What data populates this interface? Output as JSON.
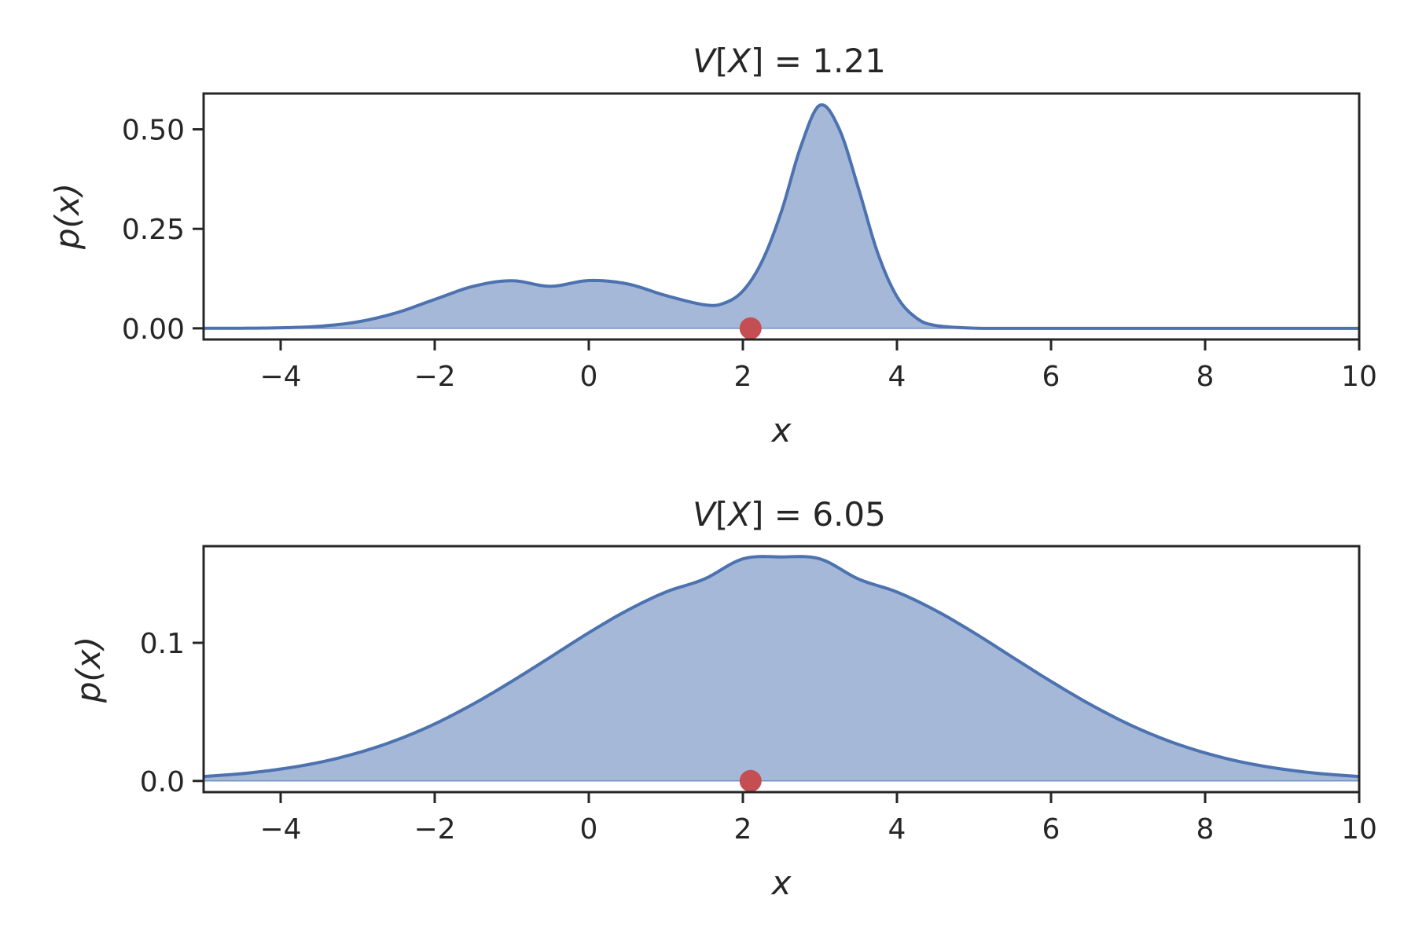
{
  "colors": {
    "line": "#4c72b0",
    "fill": "#4c72b0",
    "marker": "#c44e52",
    "axes": "#262626",
    "background": "#ffffff"
  },
  "chart_data": [
    {
      "type": "area",
      "title": "V[X] = 1.21",
      "title_parts": {
        "var": "V",
        "open": "[",
        "rv": "X",
        "close": "]",
        "rest": " = 1.21"
      },
      "xlabel": "x",
      "ylabel": "p(x)",
      "xlim": [
        -5,
        10
      ],
      "ylim": [
        -0.028,
        0.59
      ],
      "xticks": [
        -4,
        -2,
        0,
        2,
        4,
        6,
        8,
        10
      ],
      "xtick_labels": [
        "−4",
        "−2",
        "0",
        "2",
        "4",
        "6",
        "8",
        "10"
      ],
      "yticks": [
        0.0,
        0.25,
        0.5
      ],
      "ytick_labels": [
        "0.00",
        "0.25",
        "0.50"
      ],
      "grid": false,
      "series": [
        {
          "x": [
            -5,
            -4.5,
            -4,
            -3.5,
            -3,
            -2.5,
            -2,
            -1.5,
            -1,
            -0.5,
            0,
            0.5,
            1,
            1.5,
            1.75,
            2,
            2.25,
            2.5,
            2.75,
            3,
            3.25,
            3.5,
            3.75,
            4,
            4.25,
            4.5,
            5,
            5.5,
            6,
            7,
            8,
            9,
            10
          ],
          "y": [
            0.0,
            0.0002,
            0.0013,
            0.0052,
            0.0162,
            0.0389,
            0.0726,
            0.1056,
            0.1197,
            0.1056,
            0.1201,
            0.1117,
            0.0824,
            0.0592,
            0.0628,
            0.0939,
            0.1688,
            0.2934,
            0.4556,
            0.5609,
            0.5013,
            0.3518,
            0.1893,
            0.0797,
            0.0264,
            0.0072,
            0.0005,
            0.0,
            0.0,
            0.0,
            0.0,
            0.0,
            0.0
          ]
        }
      ],
      "point": {
        "x": 2.1,
        "y": 0.0
      }
    },
    {
      "type": "area",
      "title": "V[X] = 6.05",
      "title_parts": {
        "var": "V",
        "open": "[",
        "rv": "X",
        "close": "]",
        "rest": " = 6.05"
      },
      "xlabel": "x",
      "ylabel": "p(x)",
      "xlim": [
        -5,
        10
      ],
      "ylim": [
        -0.0081,
        0.17
      ],
      "xticks": [
        -4,
        -2,
        0,
        2,
        4,
        6,
        8,
        10
      ],
      "xtick_labels": [
        "−4",
        "−2",
        "0",
        "2",
        "4",
        "6",
        "8",
        "10"
      ],
      "yticks": [
        0.0,
        0.1
      ],
      "ytick_labels": [
        "0.0",
        "0.1"
      ],
      "grid": false,
      "series": [
        {
          "x": [
            -5,
            -4.5,
            -4,
            -3.5,
            -3,
            -2.5,
            -2,
            -1.5,
            -1,
            -0.5,
            0,
            0.5,
            1,
            1.5,
            2,
            2.5,
            3,
            3.5,
            4,
            4.5,
            5,
            5.5,
            6,
            6.5,
            7,
            7.5,
            8,
            8.5,
            9,
            9.5,
            10
          ],
          "y": [
            0.0032,
            0.0053,
            0.0086,
            0.0134,
            0.0203,
            0.0295,
            0.0413,
            0.0557,
            0.0721,
            0.0896,
            0.1073,
            0.1235,
            0.1368,
            0.1462,
            0.1608,
            0.1622,
            0.1608,
            0.1462,
            0.1368,
            0.1235,
            0.1073,
            0.0896,
            0.0721,
            0.0557,
            0.0413,
            0.0295,
            0.0203,
            0.0134,
            0.0086,
            0.0053,
            0.0032
          ]
        }
      ],
      "point": {
        "x": 2.1,
        "y": 0.0
      }
    }
  ]
}
